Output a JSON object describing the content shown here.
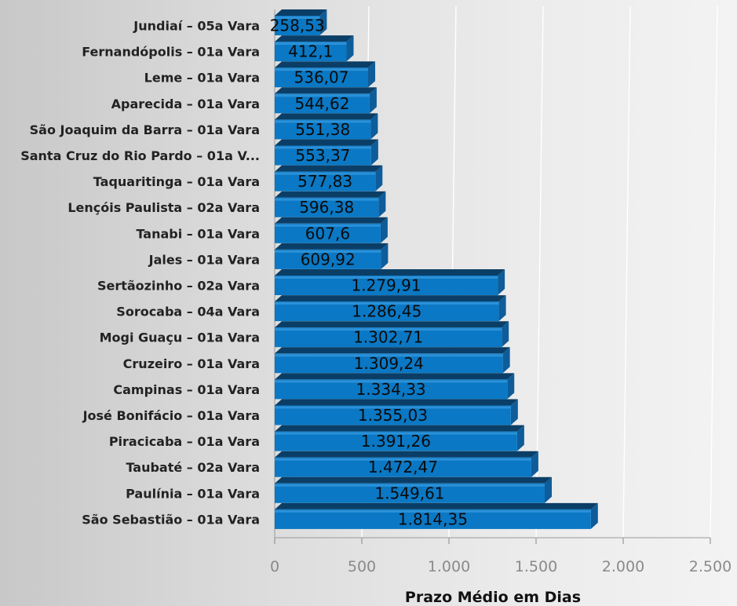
{
  "chart_data": {
    "type": "bar",
    "orientation": "horizontal",
    "style": "3d",
    "xlabel": "Prazo Médio em Dias",
    "ylabel": "",
    "xlim": [
      0,
      2500
    ],
    "x_ticks": [
      0,
      500,
      1000,
      1500,
      2000,
      2500
    ],
    "x_tick_labels": [
      "0",
      "500",
      "1.000",
      "1.500",
      "2.000",
      "2.500"
    ],
    "grid": true,
    "bar_color": "#0a78c4",
    "categories": [
      "Jundiaí  – 05a Vara",
      "Fernandópolis  – 01a Vara",
      "Leme  – 01a Vara",
      "Aparecida  – 01a Vara",
      "São Joaquim da Barra  – 01a Vara",
      "Santa Cruz do Rio Pardo  – 01a V...",
      "Taquaritinga  – 01a Vara",
      "Lençóis Paulista  – 02a Vara",
      "Tanabi  – 01a Vara",
      "Jales  – 01a Vara",
      "Sertãozinho  – 02a Vara",
      "Sorocaba  – 04a Vara",
      "Mogi Guaçu  – 01a Vara",
      "Cruzeiro  – 01a Vara",
      "Campinas  – 01a Vara",
      "José Bonifácio  – 01a Vara",
      "Piracicaba  – 01a Vara",
      "Taubaté  – 02a Vara",
      "Paulínia  – 01a Vara",
      "São Sebastião  – 01a Vara"
    ],
    "values": [
      258.53,
      412.1,
      536.07,
      544.62,
      551.38,
      553.37,
      577.83,
      596.38,
      607.6,
      609.92,
      1279.91,
      1286.45,
      1302.71,
      1309.24,
      1334.33,
      1355.03,
      1391.26,
      1472.47,
      1549.61,
      1814.35
    ],
    "value_labels": [
      "258,53",
      "412,1",
      "536,07",
      "544,62",
      "551,38",
      "553,37",
      "577,83",
      "596,38",
      "607,6",
      "609,92",
      "1.279,91",
      "1.286,45",
      "1.302,71",
      "1.309,24",
      "1.334,33",
      "1.355,03",
      "1.391,26",
      "1.472,47",
      "1.549,61",
      "1.814,35"
    ]
  }
}
